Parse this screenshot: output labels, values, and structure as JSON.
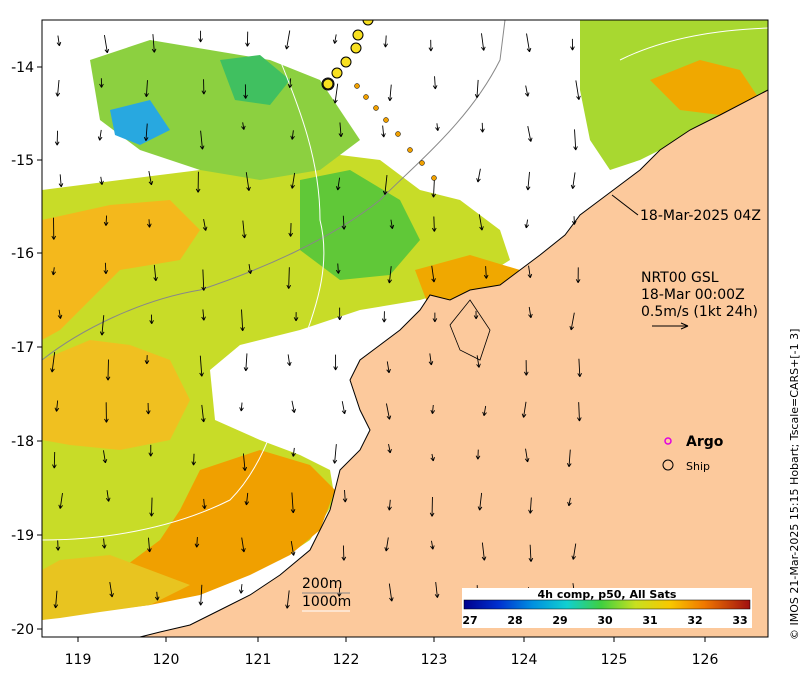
{
  "map": {
    "x_ticks": [
      "119",
      "120",
      "121",
      "122",
      "123",
      "124",
      "125",
      "126"
    ],
    "y_ticks": [
      "-14",
      "-15",
      "-16",
      "-17",
      "-18",
      "-19",
      "-20"
    ]
  },
  "annotations": {
    "timestamp": "18-Mar-2025 04Z",
    "current_source": "NRT00 GSL",
    "current_time": "18-Mar 00:00Z",
    "current_scale": "0.5m/s (1kt 24h)"
  },
  "legend": {
    "argo_label": "Argo",
    "ship_label": "Ship",
    "argo_color": "#e000e0"
  },
  "isobaths": {
    "label_200": "200m",
    "label_1000": "1000m"
  },
  "colorbar": {
    "title": "4h comp, p50, All Sats",
    "ticks": [
      "27",
      "28",
      "29",
      "30",
      "31",
      "32",
      "33"
    ]
  },
  "credit": "© IMOS 21-Mar-2025 15:15 Hobart; Tscale=CARS+[-1 3]",
  "colors": {
    "land": "#fcc99c",
    "no_data": "#ffffff",
    "sst_warm": "#f0a000",
    "sst_mid": "#c8dc28",
    "sst_cool": "#28c0e0"
  }
}
